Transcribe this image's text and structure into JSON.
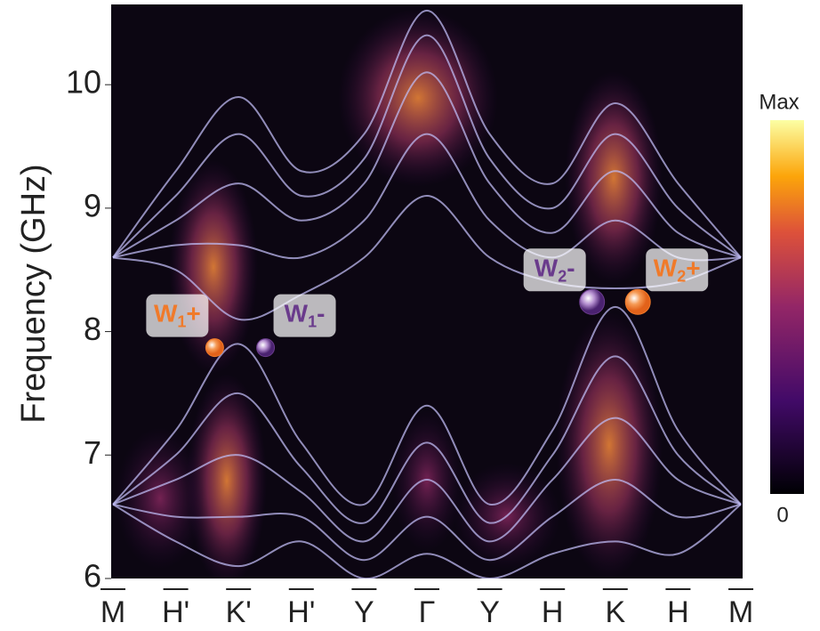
{
  "chart_data": {
    "type": "band_structure",
    "y_label": "Frequency (GHz)",
    "ylim": [
      6,
      10.65
    ],
    "yticks": [
      6,
      7,
      8,
      9,
      10
    ],
    "categories": [
      "M",
      "H'",
      "K'",
      "H'",
      "Y",
      "Γ",
      "Y",
      "H",
      "K",
      "H",
      "M"
    ],
    "band_color": "#bdb9f2",
    "bands": [
      {
        "values": [
          8.6,
          9.3,
          9.9,
          9.3,
          9.6,
          10.6,
          9.6,
          9.2,
          9.85,
          9.2,
          8.6
        ]
      },
      {
        "values": [
          8.6,
          9.1,
          9.6,
          9.1,
          9.4,
          10.4,
          9.4,
          9.0,
          9.6,
          9.0,
          8.6
        ]
      },
      {
        "values": [
          8.6,
          8.9,
          9.2,
          8.9,
          9.2,
          10.1,
          9.2,
          8.8,
          9.3,
          8.8,
          8.6
        ]
      },
      {
        "values": [
          8.6,
          8.7,
          8.7,
          8.6,
          8.9,
          9.6,
          8.9,
          8.6,
          8.9,
          8.6,
          8.6
        ]
      },
      {
        "values": [
          8.6,
          8.5,
          8.1,
          8.3,
          8.6,
          9.1,
          8.6,
          8.4,
          8.35,
          8.4,
          8.6
        ]
      },
      {
        "values": [
          6.6,
          7.2,
          7.9,
          7.1,
          6.6,
          7.4,
          6.6,
          7.2,
          8.2,
          7.2,
          6.6
        ]
      },
      {
        "values": [
          6.6,
          7.0,
          7.5,
          6.9,
          6.45,
          7.1,
          6.45,
          7.0,
          7.8,
          7.0,
          6.6
        ]
      },
      {
        "values": [
          6.6,
          6.8,
          7.0,
          6.7,
          6.3,
          6.8,
          6.3,
          6.8,
          7.3,
          6.8,
          6.6
        ]
      },
      {
        "values": [
          6.6,
          6.5,
          6.5,
          6.5,
          6.15,
          6.5,
          6.15,
          6.5,
          6.8,
          6.5,
          6.6
        ]
      },
      {
        "values": [
          6.6,
          6.3,
          6.1,
          6.3,
          6.0,
          6.2,
          6.0,
          6.2,
          6.3,
          6.2,
          6.6
        ]
      }
    ],
    "weyl_points": [
      {
        "name": "W",
        "sub": "1",
        "sign": "+",
        "x": 1.62,
        "y": 7.87,
        "color": "#f07a2a"
      },
      {
        "name": "W",
        "sub": "1",
        "sign": "-",
        "x": 2.43,
        "y": 7.87,
        "color": "#6a3b8c"
      },
      {
        "name": "W",
        "sub": "2",
        "sign": "-",
        "x": 7.63,
        "y": 8.24,
        "color": "#6a3b8c"
      },
      {
        "name": "W",
        "sub": "2",
        "sign": "+",
        "x": 8.36,
        "y": 8.24,
        "color": "#f07a2a"
      }
    ],
    "colorbar": {
      "max_label": "Max",
      "min_label": "0"
    }
  }
}
